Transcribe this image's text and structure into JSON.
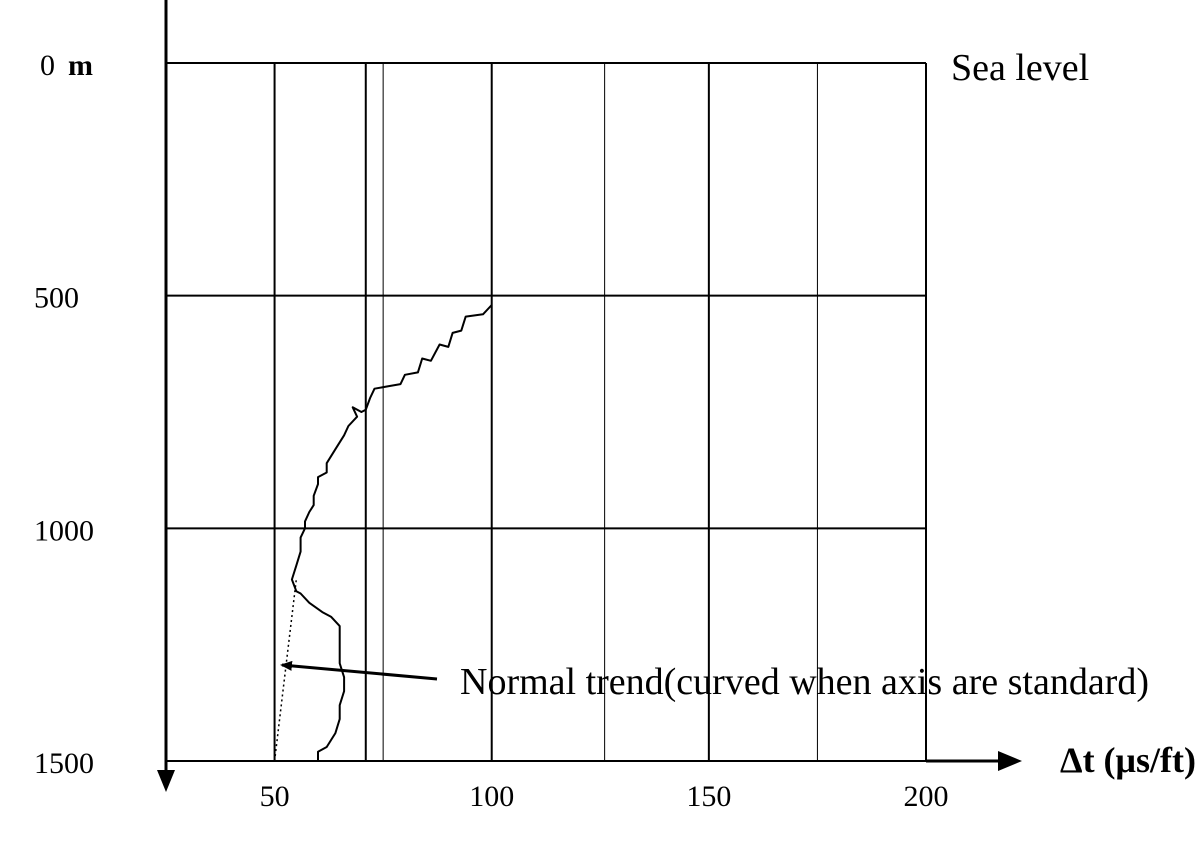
{
  "chart_data": {
    "type": "line",
    "title": "",
    "xlabel": "Δt (μs/ft)",
    "ylabel": "",
    "y_unit": "m",
    "xlim": [
      25,
      200
    ],
    "ylim": [
      0,
      1500
    ],
    "y_inverted": true,
    "x_ticks": [
      {
        "value": 50,
        "label": "50"
      },
      {
        "value": 100,
        "label": "100"
      },
      {
        "value": 150,
        "label": "150"
      },
      {
        "value": 200,
        "label": "200"
      }
    ],
    "y_ticks": [
      {
        "value": 0,
        "label": "0"
      },
      {
        "value": 500,
        "label": "500"
      },
      {
        "value": 1000,
        "label": "1000"
      },
      {
        "value": 1500,
        "label": "1500"
      }
    ],
    "major_vgrid": [
      50,
      100,
      150,
      200
    ],
    "minor_vgrid": [
      71,
      75,
      126,
      175
    ],
    "hgrid": [
      0,
      500,
      1000,
      1500
    ],
    "annotations": {
      "sea_level": "Sea level",
      "normal_trend": "Normal trend(curved when axis are standard)"
    },
    "series": [
      {
        "type": "measured",
        "x": [
          100,
          98,
          94,
          93,
          91,
          90,
          88,
          86,
          84,
          83,
          80,
          79,
          76,
          73,
          72,
          71,
          70,
          68,
          69,
          67,
          66,
          64,
          62,
          62,
          60,
          60,
          59,
          59,
          58,
          57,
          57,
          56,
          56,
          55,
          54,
          55,
          56,
          58,
          61,
          63,
          65,
          65,
          65,
          66,
          66,
          65,
          65,
          64,
          63,
          62,
          60,
          60
        ],
        "y": [
          520,
          540,
          545,
          575,
          580,
          610,
          605,
          640,
          635,
          665,
          670,
          690,
          695,
          700,
          720,
          745,
          750,
          740,
          760,
          780,
          800,
          830,
          860,
          880,
          890,
          905,
          930,
          950,
          965,
          985,
          1000,
          1020,
          1050,
          1080,
          1110,
          1135,
          1140,
          1160,
          1180,
          1190,
          1210,
          1250,
          1290,
          1320,
          1350,
          1380,
          1410,
          1440,
          1455,
          1470,
          1480,
          1500
        ]
      },
      {
        "type": "normal_trend",
        "x": [
          50,
          55
        ],
        "y": [
          1500,
          1110
        ]
      }
    ]
  }
}
